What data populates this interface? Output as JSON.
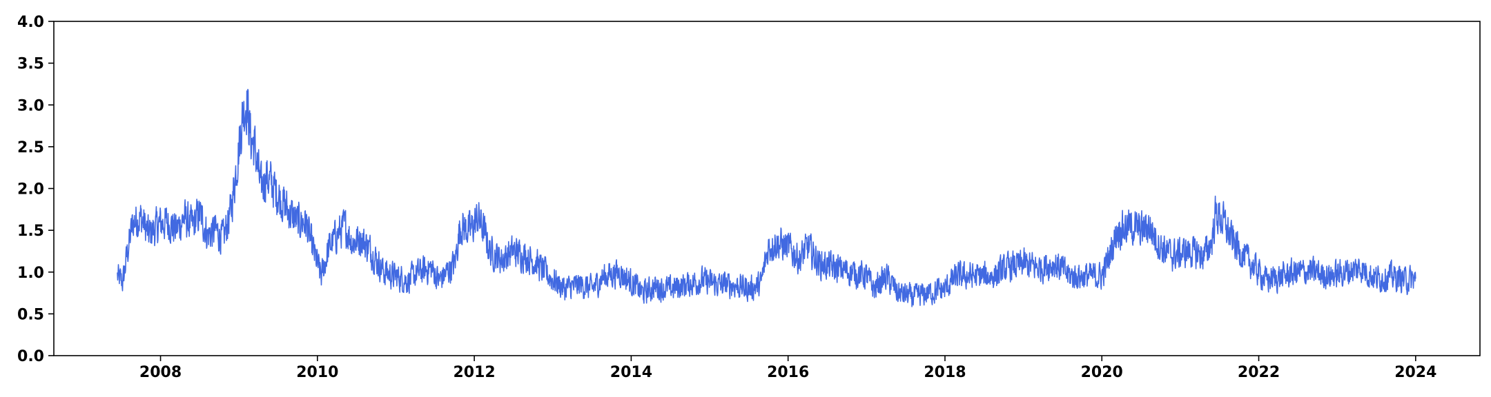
{
  "chart_data": {
    "type": "line",
    "title": "",
    "xlabel": "",
    "ylabel": "",
    "x_range": [
      2006.64,
      2024.82
    ],
    "ylim": [
      0.0,
      4.0
    ],
    "x_ticks": [
      2008,
      2010,
      2012,
      2014,
      2016,
      2018,
      2020,
      2022,
      2024
    ],
    "x_tick_labels": [
      "2008",
      "2010",
      "2012",
      "2014",
      "2016",
      "2018",
      "2020",
      "2022",
      "2024"
    ],
    "y_ticks": [
      0.0,
      0.5,
      1.0,
      1.5,
      2.0,
      2.5,
      3.0,
      3.5,
      4.0
    ],
    "y_tick_labels": [
      "0.0",
      "0.5",
      "1.0",
      "1.5",
      "2.0",
      "2.5",
      "3.0",
      "3.5",
      "4.0"
    ],
    "grid": false,
    "legend": "none",
    "series": [
      {
        "color": "#4169e1",
        "points": [
          [
            2007.45,
            0.95
          ],
          [
            2007.52,
            0.88
          ],
          [
            2007.58,
            1.25
          ],
          [
            2007.65,
            1.6
          ],
          [
            2007.75,
            1.65
          ],
          [
            2007.85,
            1.45
          ],
          [
            2008.0,
            1.58
          ],
          [
            2008.1,
            1.6
          ],
          [
            2008.2,
            1.5
          ],
          [
            2008.3,
            1.65
          ],
          [
            2008.4,
            1.55
          ],
          [
            2008.5,
            1.7
          ],
          [
            2008.6,
            1.45
          ],
          [
            2008.7,
            1.5
          ],
          [
            2008.8,
            1.4
          ],
          [
            2008.9,
            1.75
          ],
          [
            2009.0,
            2.5
          ],
          [
            2009.05,
            2.9
          ],
          [
            2009.1,
            3.05
          ],
          [
            2009.15,
            2.6
          ],
          [
            2009.2,
            2.5
          ],
          [
            2009.28,
            2.0
          ],
          [
            2009.35,
            2.15
          ],
          [
            2009.45,
            2.0
          ],
          [
            2009.55,
            1.85
          ],
          [
            2009.65,
            1.7
          ],
          [
            2009.75,
            1.6
          ],
          [
            2009.85,
            1.6
          ],
          [
            2009.95,
            1.25
          ],
          [
            2010.05,
            0.95
          ],
          [
            2010.15,
            1.3
          ],
          [
            2010.25,
            1.45
          ],
          [
            2010.35,
            1.55
          ],
          [
            2010.45,
            1.35
          ],
          [
            2010.55,
            1.4
          ],
          [
            2010.65,
            1.3
          ],
          [
            2010.75,
            1.15
          ],
          [
            2010.85,
            1.0
          ],
          [
            2011.0,
            0.95
          ],
          [
            2011.15,
            0.9
          ],
          [
            2011.3,
            1.0
          ],
          [
            2011.45,
            1.05
          ],
          [
            2011.55,
            0.9
          ],
          [
            2011.65,
            1.0
          ],
          [
            2011.75,
            1.1
          ],
          [
            2011.82,
            1.55
          ],
          [
            2011.95,
            1.5
          ],
          [
            2012.05,
            1.65
          ],
          [
            2012.12,
            1.5
          ],
          [
            2012.2,
            1.25
          ],
          [
            2012.35,
            1.15
          ],
          [
            2012.5,
            1.25
          ],
          [
            2012.65,
            1.2
          ],
          [
            2012.8,
            1.1
          ],
          [
            2012.95,
            0.95
          ],
          [
            2013.15,
            0.8
          ],
          [
            2013.35,
            0.85
          ],
          [
            2013.5,
            0.8
          ],
          [
            2013.65,
            0.95
          ],
          [
            2013.85,
            1.0
          ],
          [
            2014.0,
            0.88
          ],
          [
            2014.15,
            0.75
          ],
          [
            2014.3,
            0.82
          ],
          [
            2014.5,
            0.8
          ],
          [
            2014.7,
            0.85
          ],
          [
            2014.9,
            0.9
          ],
          [
            2015.1,
            0.85
          ],
          [
            2015.3,
            0.85
          ],
          [
            2015.5,
            0.8
          ],
          [
            2015.65,
            0.85
          ],
          [
            2015.75,
            1.3
          ],
          [
            2015.85,
            1.35
          ],
          [
            2016.0,
            1.3
          ],
          [
            2016.15,
            1.15
          ],
          [
            2016.25,
            1.3
          ],
          [
            2016.4,
            1.1
          ],
          [
            2016.6,
            1.05
          ],
          [
            2016.8,
            1.0
          ],
          [
            2017.0,
            0.95
          ],
          [
            2017.1,
            0.8
          ],
          [
            2017.25,
            0.95
          ],
          [
            2017.4,
            0.75
          ],
          [
            2017.6,
            0.7
          ],
          [
            2017.8,
            0.75
          ],
          [
            2018.0,
            0.8
          ],
          [
            2018.15,
            0.95
          ],
          [
            2018.4,
            0.95
          ],
          [
            2018.6,
            0.95
          ],
          [
            2018.8,
            1.05
          ],
          [
            2019.0,
            1.1
          ],
          [
            2019.2,
            1.05
          ],
          [
            2019.4,
            1.1
          ],
          [
            2019.6,
            0.95
          ],
          [
            2019.8,
            0.95
          ],
          [
            2020.0,
            0.95
          ],
          [
            2020.1,
            1.2
          ],
          [
            2020.2,
            1.5
          ],
          [
            2020.35,
            1.55
          ],
          [
            2020.5,
            1.5
          ],
          [
            2020.6,
            1.55
          ],
          [
            2020.75,
            1.3
          ],
          [
            2020.9,
            1.2
          ],
          [
            2021.1,
            1.25
          ],
          [
            2021.3,
            1.2
          ],
          [
            2021.4,
            1.35
          ],
          [
            2021.45,
            1.7
          ],
          [
            2021.55,
            1.6
          ],
          [
            2021.65,
            1.4
          ],
          [
            2021.8,
            1.2
          ],
          [
            2021.95,
            1.05
          ],
          [
            2022.1,
            0.9
          ],
          [
            2022.3,
            0.95
          ],
          [
            2022.5,
            1.0
          ],
          [
            2022.7,
            1.0
          ],
          [
            2022.9,
            0.95
          ],
          [
            2023.1,
            1.0
          ],
          [
            2023.3,
            1.05
          ],
          [
            2023.5,
            0.92
          ],
          [
            2023.7,
            0.95
          ],
          [
            2023.9,
            0.9
          ],
          [
            2024.0,
            0.92
          ]
        ]
      }
    ]
  }
}
